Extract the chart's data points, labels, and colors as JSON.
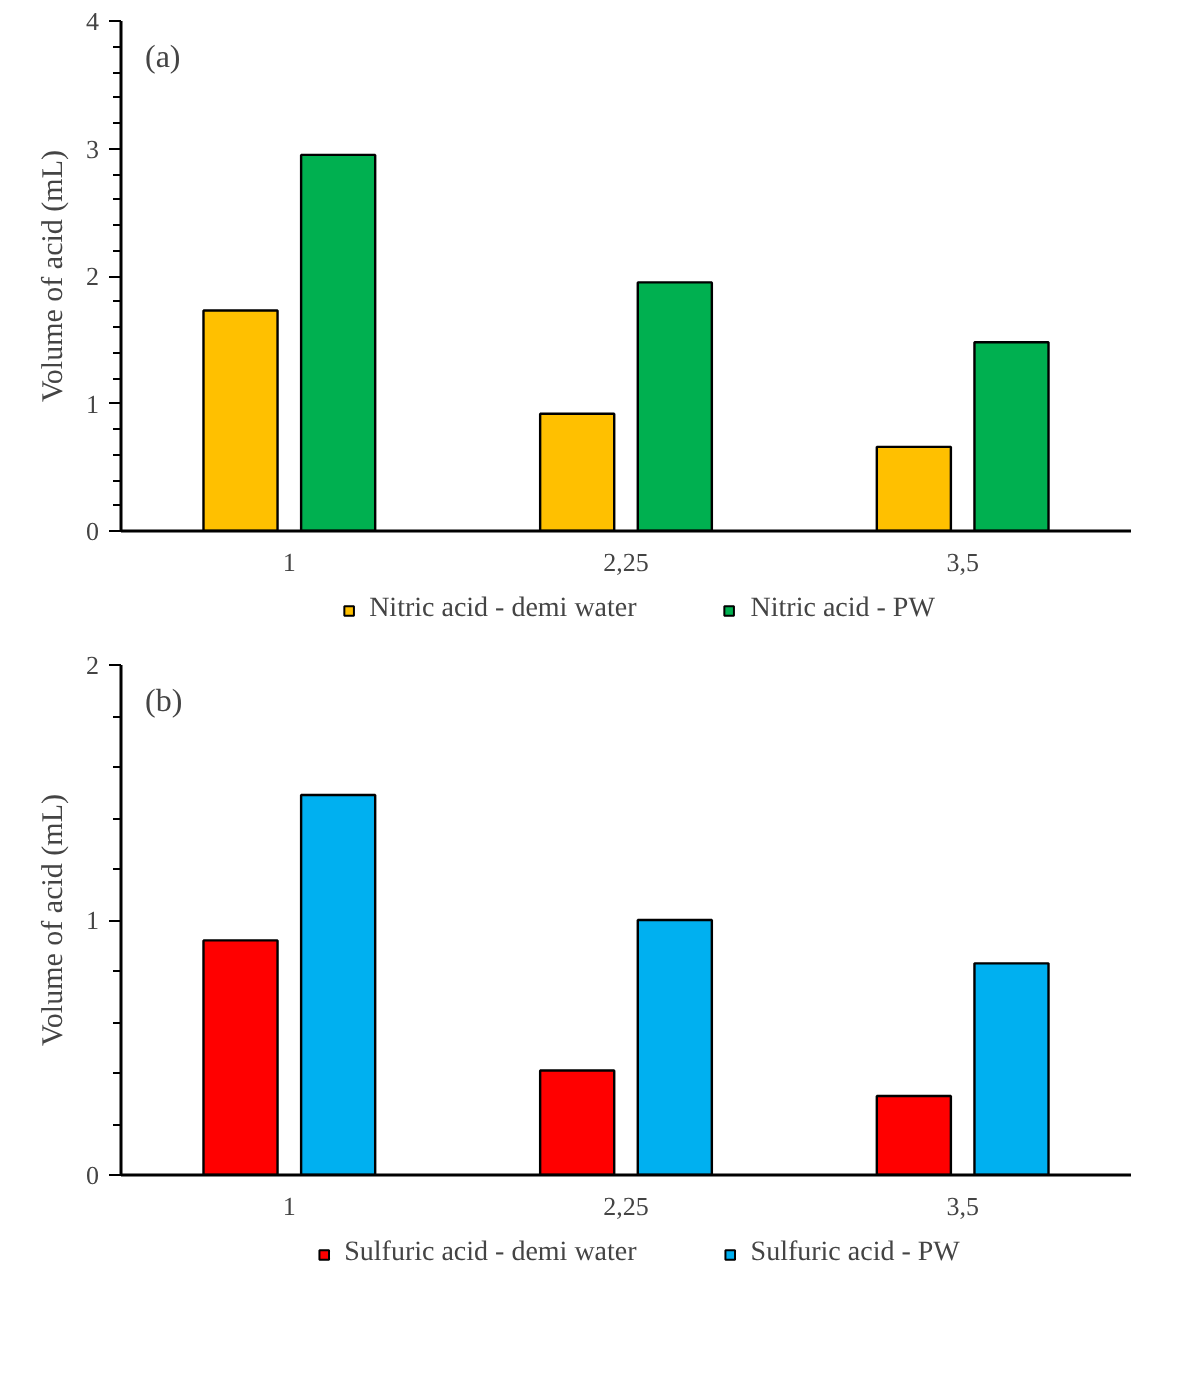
{
  "chart_data": [
    {
      "type": "bar",
      "annotations": [
        "(a)"
      ],
      "ylabel": "Volume of acid (mL)",
      "categories": [
        "1",
        "2,25",
        "3,5"
      ],
      "series": [
        {
          "name": "Nitric acid - demi water",
          "color": "#ffc000",
          "values": [
            1.73,
            0.92,
            0.66
          ]
        },
        {
          "name": "Nitric acid - PW",
          "color": "#00b050",
          "values": [
            2.95,
            1.95,
            1.48
          ]
        }
      ],
      "ylim": [
        0,
        4
      ],
      "yticks": [
        0,
        {
          "value": 0.2,
          "label": null
        },
        {
          "value": 0.4,
          "label": null
        },
        {
          "value": 0.6,
          "label": null
        },
        {
          "value": 0.8,
          "label": null
        },
        1,
        {
          "value": 1.2,
          "label": null
        },
        {
          "value": 1.4,
          "label": null
        },
        {
          "value": 1.6,
          "label": null
        },
        {
          "value": 1.8,
          "label": null
        },
        2,
        {
          "value": 2.2,
          "label": null
        },
        {
          "value": 2.4,
          "label": null
        },
        {
          "value": 2.6,
          "label": null
        },
        {
          "value": 2.8,
          "label": null
        },
        3,
        {
          "value": 3.2,
          "label": null
        },
        {
          "value": 3.4,
          "label": null
        },
        {
          "value": 3.6,
          "label": null
        },
        {
          "value": 3.8,
          "label": null
        },
        4
      ],
      "grid": false,
      "legend": "bottom"
    },
    {
      "type": "bar",
      "annotations": [
        "(b)"
      ],
      "ylabel": "Volume of acid (mL)",
      "categories": [
        "1",
        "2,25",
        "3,5"
      ],
      "series": [
        {
          "name": "Sulfuric acid - demi water",
          "color": "#ff0000",
          "values": [
            0.92,
            0.41,
            0.31
          ]
        },
        {
          "name": "Sulfuric acid - PW",
          "color": "#00b0f0",
          "values": [
            1.49,
            1.0,
            0.83
          ]
        }
      ],
      "ylim": [
        0,
        2
      ],
      "yticks": [
        0,
        {
          "value": 0.2,
          "label": null
        },
        {
          "value": 0.4,
          "label": null
        },
        {
          "value": 0.6,
          "label": null
        },
        {
          "value": 0.8,
          "label": null
        },
        1,
        {
          "value": 1.2,
          "label": null
        },
        {
          "value": 1.4,
          "label": null
        },
        {
          "value": 1.6,
          "label": null
        },
        {
          "value": 1.8,
          "label": null
        },
        2
      ],
      "grid": false,
      "legend": "bottom"
    }
  ]
}
